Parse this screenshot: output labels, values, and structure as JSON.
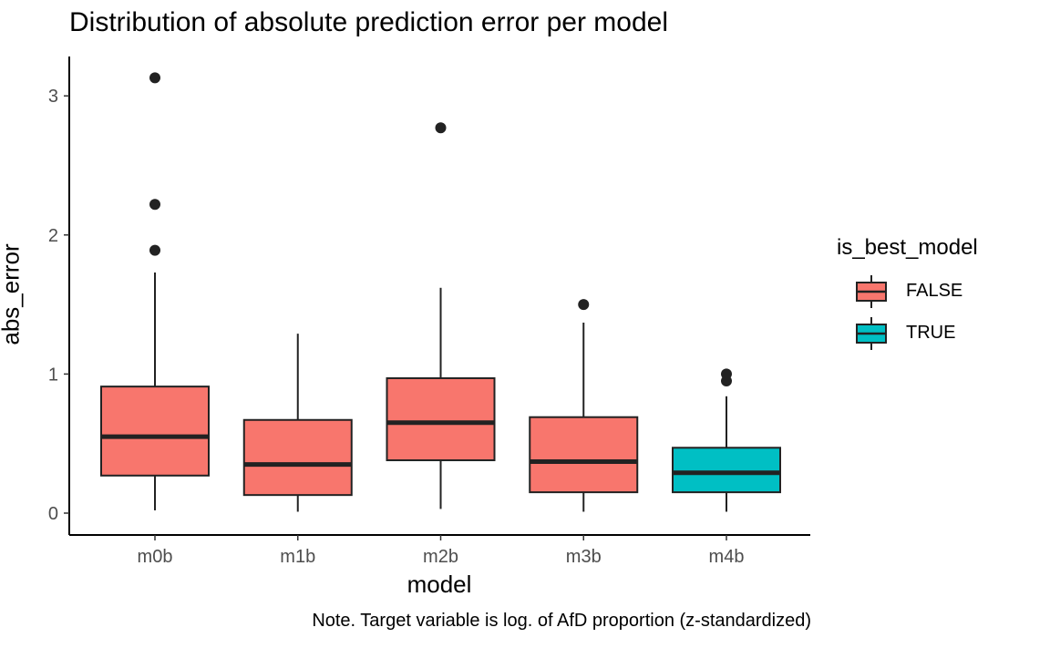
{
  "chart_data": {
    "type": "boxplot",
    "title": "Distribution of absolute prediction error per model",
    "xlabel": "model",
    "ylabel": "abs_error",
    "note": "Note. Target variable is log. of AfD proportion (z-standardized)",
    "ylim": [
      -0.15,
      3.3
    ],
    "yticks": [
      0,
      1,
      2,
      3
    ],
    "grid": false,
    "legend": {
      "title": "is_best_model",
      "placement": "right",
      "entries": [
        {
          "label": "FALSE",
          "color": "#F8766D"
        },
        {
          "label": "TRUE",
          "color": "#00BFC4"
        }
      ]
    },
    "categories": [
      "m0b",
      "m1b",
      "m2b",
      "m3b",
      "m4b"
    ],
    "boxes": [
      {
        "category": "m0b",
        "is_best_model": "FALSE",
        "whisker_low": 0.02,
        "q1": 0.27,
        "median": 0.55,
        "q3": 0.91,
        "whisker_high": 1.73,
        "outliers": [
          1.89,
          2.22,
          3.13
        ]
      },
      {
        "category": "m1b",
        "is_best_model": "FALSE",
        "whisker_low": 0.01,
        "q1": 0.13,
        "median": 0.35,
        "q3": 0.67,
        "whisker_high": 1.29,
        "outliers": []
      },
      {
        "category": "m2b",
        "is_best_model": "FALSE",
        "whisker_low": 0.03,
        "q1": 0.38,
        "median": 0.65,
        "q3": 0.97,
        "whisker_high": 1.62,
        "outliers": [
          2.77
        ]
      },
      {
        "category": "m3b",
        "is_best_model": "FALSE",
        "whisker_low": 0.01,
        "q1": 0.15,
        "median": 0.37,
        "q3": 0.69,
        "whisker_high": 1.37,
        "outliers": [
          1.5
        ]
      },
      {
        "category": "m4b",
        "is_best_model": "TRUE",
        "whisker_low": 0.01,
        "q1": 0.15,
        "median": 0.29,
        "q3": 0.47,
        "whisker_high": 0.84,
        "outliers": [
          0.95,
          1.0
        ]
      }
    ]
  }
}
